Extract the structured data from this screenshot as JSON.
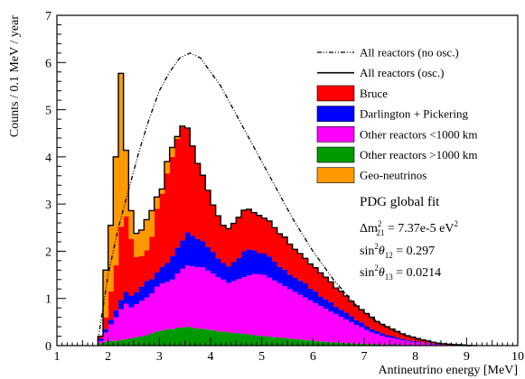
{
  "chart_data": {
    "type": "area",
    "stacked": true,
    "xlabel": "Antineutrino energy [MeV]",
    "ylabel": "Counts / 0.1 MeV / year",
    "xlim": [
      1,
      10
    ],
    "ylim": [
      0,
      7
    ],
    "x_ticks": [
      "1",
      "2",
      "3",
      "4",
      "5",
      "6",
      "7",
      "8",
      "9",
      "10"
    ],
    "y_ticks": [
      "0",
      "1",
      "2",
      "3",
      "4",
      "5",
      "6",
      "7"
    ],
    "grid": false,
    "legend_position": "top-right",
    "x": [
      1.8,
      1.9,
      2.0,
      2.1,
      2.2,
      2.3,
      2.4,
      2.5,
      2.6,
      2.7,
      2.8,
      2.9,
      3.0,
      3.1,
      3.2,
      3.3,
      3.4,
      3.5,
      3.6,
      3.7,
      3.8,
      3.9,
      4.0,
      4.1,
      4.2,
      4.3,
      4.4,
      4.5,
      4.6,
      4.7,
      4.8,
      4.9,
      5.0,
      5.1,
      5.2,
      5.3,
      5.4,
      5.5,
      5.6,
      5.7,
      5.8,
      5.9,
      6.0,
      6.1,
      6.2,
      6.3,
      6.4,
      6.5,
      6.6,
      6.7,
      6.8,
      6.9,
      7.0,
      7.1,
      7.2,
      7.3,
      7.4,
      7.5,
      7.6,
      7.7,
      7.8,
      7.9,
      8.0,
      8.1,
      8.2,
      8.3,
      8.4,
      8.5,
      8.6,
      8.7,
      8.8,
      8.9,
      9.0
    ],
    "series": [
      {
        "name": "Other reactors >1000 km",
        "color": "#009900",
        "values": [
          0.05,
          0.08,
          0.1,
          0.1,
          0.12,
          0.14,
          0.16,
          0.18,
          0.2,
          0.22,
          0.26,
          0.3,
          0.32,
          0.35,
          0.35,
          0.38,
          0.38,
          0.4,
          0.38,
          0.36,
          0.36,
          0.34,
          0.33,
          0.3,
          0.3,
          0.28,
          0.27,
          0.26,
          0.25,
          0.24,
          0.22,
          0.21,
          0.2,
          0.19,
          0.18,
          0.17,
          0.16,
          0.15,
          0.14,
          0.13,
          0.12,
          0.11,
          0.1,
          0.09,
          0.08,
          0.07,
          0.07,
          0.06,
          0.05,
          0.05,
          0.04,
          0.04,
          0.03,
          0.03,
          0.03,
          0.02,
          0.02,
          0.02,
          0.02,
          0.01,
          0.01,
          0.01,
          0.01,
          0.01,
          0.01,
          0,
          0,
          0,
          0,
          0,
          0,
          0,
          0
        ]
      },
      {
        "name": "Other reactors <1000 km",
        "color": "#ff00ff",
        "values": [
          0.05,
          0.2,
          0.35,
          0.5,
          0.65,
          0.75,
          0.65,
          0.7,
          0.75,
          0.8,
          0.85,
          0.95,
          1.0,
          1.0,
          1.05,
          1.15,
          1.25,
          1.3,
          1.3,
          1.3,
          1.3,
          1.25,
          1.2,
          1.15,
          1.1,
          1.05,
          1.1,
          1.15,
          1.2,
          1.25,
          1.3,
          1.3,
          1.3,
          1.25,
          1.2,
          1.15,
          1.1,
          1.05,
          1.0,
          0.95,
          0.9,
          0.85,
          0.8,
          0.75,
          0.7,
          0.65,
          0.6,
          0.55,
          0.5,
          0.45,
          0.4,
          0.35,
          0.3,
          0.25,
          0.22,
          0.19,
          0.16,
          0.14,
          0.12,
          0.1,
          0.08,
          0.07,
          0.06,
          0.05,
          0.04,
          0.03,
          0.02,
          0.02,
          0.01,
          0.01,
          0.01,
          0,
          0
        ]
      },
      {
        "name": "Darlington + Pickering",
        "color": "#0000ff",
        "values": [
          0.05,
          0.07,
          0.1,
          0.15,
          0.2,
          0.25,
          0.25,
          0.25,
          0.3,
          0.35,
          0.3,
          0.3,
          0.35,
          0.4,
          0.5,
          0.55,
          0.6,
          0.7,
          0.65,
          0.6,
          0.55,
          0.5,
          0.45,
          0.4,
          0.35,
          0.35,
          0.4,
          0.45,
          0.55,
          0.55,
          0.5,
          0.45,
          0.45,
          0.45,
          0.4,
          0.35,
          0.35,
          0.3,
          0.3,
          0.3,
          0.3,
          0.25,
          0.25,
          0.2,
          0.2,
          0.2,
          0.15,
          0.15,
          0.15,
          0.12,
          0.1,
          0.1,
          0.08,
          0.07,
          0.06,
          0.05,
          0.04,
          0.04,
          0.03,
          0.03,
          0.02,
          0.02,
          0.02,
          0.01,
          0.01,
          0.01,
          0.01,
          0,
          0,
          0,
          0,
          0,
          0
        ]
      },
      {
        "name": "Bruce",
        "color": "#ff0000",
        "values": [
          0.05,
          0.25,
          0.6,
          0.95,
          1.55,
          1.6,
          1.2,
          0.75,
          0.65,
          0.65,
          0.9,
          1.35,
          1.55,
          1.9,
          2.1,
          2.3,
          2.4,
          2.2,
          1.9,
          1.6,
          1.4,
          1.2,
          1.0,
          0.9,
          0.8,
          0.8,
          0.82,
          0.86,
          0.87,
          0.85,
          0.8,
          0.8,
          0.75,
          0.75,
          0.72,
          0.7,
          0.69,
          0.65,
          0.6,
          0.57,
          0.53,
          0.52,
          0.5,
          0.5,
          0.47,
          0.43,
          0.4,
          0.39,
          0.35,
          0.32,
          0.3,
          0.27,
          0.27,
          0.25,
          0.2,
          0.19,
          0.18,
          0.15,
          0.13,
          0.11,
          0.1,
          0.08,
          0.06,
          0.05,
          0.04,
          0.03,
          0.02,
          0.02,
          0.02,
          0.01,
          0.01,
          0.01,
          0
        ]
      },
      {
        "name": "Geo-neutrinos",
        "color": "#ff9900",
        "values": [
          0.0,
          1.0,
          1.4,
          2.3,
          3.25,
          1.4,
          0.6,
          0.5,
          0.55,
          0.65,
          0.55,
          0.25,
          0.1,
          0.25,
          0.2,
          0.05,
          0.02,
          0.01,
          0,
          0,
          0,
          0,
          0,
          0,
          0,
          0,
          0,
          0,
          0,
          0,
          0,
          0,
          0,
          0,
          0,
          0,
          0,
          0,
          0,
          0,
          0,
          0,
          0,
          0,
          0,
          0,
          0,
          0,
          0,
          0,
          0,
          0,
          0,
          0,
          0,
          0,
          0,
          0,
          0,
          0,
          0,
          0,
          0,
          0,
          0,
          0,
          0,
          0,
          0,
          0,
          0,
          0,
          0
        ]
      }
    ],
    "overlays": [
      {
        "name": "All reactors (no osc.)",
        "style": "dash-dot",
        "x": [
          1.8,
          2.0,
          2.2,
          2.4,
          2.6,
          2.8,
          3.0,
          3.2,
          3.4,
          3.6,
          3.8,
          4.0,
          4.2,
          4.4,
          4.6,
          4.8,
          5.0,
          5.2,
          5.4,
          5.6,
          5.8,
          6.0,
          6.2,
          6.4,
          6.6,
          6.8,
          7.0,
          7.2,
          7.4,
          7.6,
          7.8,
          8.0,
          8.2,
          8.4,
          8.6,
          8.8,
          9.0,
          9.2
        ],
        "values": [
          0.1,
          1.5,
          2.5,
          3.3,
          4.1,
          4.8,
          5.4,
          5.8,
          6.1,
          6.2,
          6.1,
          5.8,
          5.5,
          5.1,
          4.7,
          4.3,
          3.9,
          3.5,
          3.1,
          2.7,
          2.35,
          2.0,
          1.7,
          1.4,
          1.15,
          0.9,
          0.7,
          0.55,
          0.42,
          0.3,
          0.22,
          0.15,
          0.1,
          0.06,
          0.04,
          0.02,
          0.01,
          0.0
        ]
      },
      {
        "name": "All reactors (osc.)",
        "style": "solid"
      },
      {
        "name": "Bruce",
        "color": "#ff0000"
      },
      {
        "name": "Darlington + Pickering",
        "color": "#0000ff"
      },
      {
        "name": "Other reactors <1000 km",
        "color": "#ff00ff"
      },
      {
        "name": "Other reactors >1000 km",
        "color": "#009900"
      },
      {
        "name": "Geo-neutrinos",
        "color": "#ff9900"
      }
    ],
    "annotations": {
      "fit_title": "PDG global fit",
      "line1_a": "Δm",
      "line1_sup": "2",
      "line1_sub": "21",
      "line1_b": " = 7.37e-5 eV",
      "line1_sup2": "2",
      "line2_a": "sin",
      "line2_sup": "2",
      "line2_b": "θ",
      "line2_sub": "12",
      "line2_c": " = 0.297",
      "line3_a": "sin",
      "line3_sup": "2",
      "line3_b": "θ",
      "line3_sub": "13",
      "line3_c": " = 0.0214"
    }
  }
}
